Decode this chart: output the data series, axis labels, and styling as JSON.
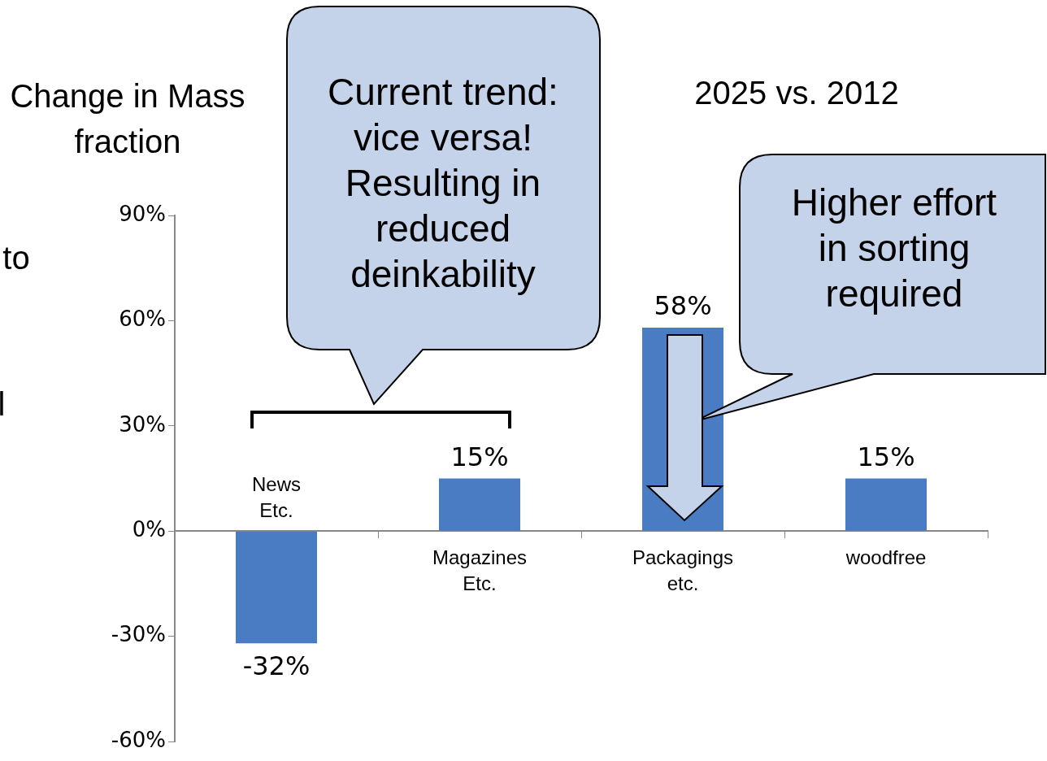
{
  "chart_data": {
    "type": "bar",
    "title": "2025 vs. 2012",
    "ylabel": "Change in Mass fraction",
    "categories": [
      "News Etc.",
      "Magazines Etc.",
      "Packagings etc.",
      "woodfree"
    ],
    "values": [
      -32,
      15,
      58,
      15
    ],
    "color": "#4a7cc4",
    "value_labels": [
      "-32%",
      "15%",
      "58%",
      "15%"
    ],
    "ylim": [
      -60,
      90
    ],
    "yticks": [
      {
        "value": -60,
        "label": "-60%"
      },
      {
        "value": -30,
        "label": "-30%"
      },
      {
        "value": 0,
        "label": "0%"
      },
      {
        "value": 30,
        "label": "30%"
      },
      {
        "value": 60,
        "label": "60%"
      },
      {
        "value": 90,
        "label": "90%"
      }
    ],
    "annotations": [
      "Current trend: vice versa! Resulting in reduced deinkability",
      "Higher effort in sorting required",
      "to",
      "l"
    ],
    "grid": false,
    "legend": false
  }
}
